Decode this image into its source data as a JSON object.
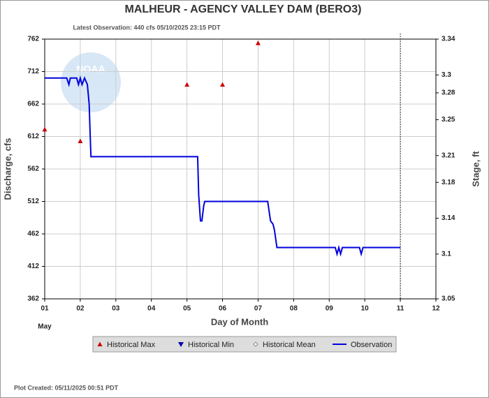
{
  "chart_data": {
    "type": "line",
    "title": "MALHEUR - AGENCY VALLEY DAM  (BERO3)",
    "subtitle": "Latest Observation: 440 cfs 05/10/2025 23:15 PDT",
    "x_label": "Day of Month",
    "month_label": "May",
    "y_label": "Discharge, cfs",
    "y2_label": "Stage, ft",
    "footer": "Plot Created: 05/11/2025 00:51 PDT",
    "xlim": [
      1,
      12
    ],
    "xticks": [
      {
        "value": 1,
        "label": "01"
      },
      {
        "value": 2,
        "label": "02"
      },
      {
        "value": 3,
        "label": "03"
      },
      {
        "value": 4,
        "label": "04"
      },
      {
        "value": 5,
        "label": "05"
      },
      {
        "value": 6,
        "label": "06"
      },
      {
        "value": 7,
        "label": "07"
      },
      {
        "value": 8,
        "label": "08"
      },
      {
        "value": 9,
        "label": "09"
      },
      10,
      11,
      12
    ],
    "ylim": [
      362,
      762
    ],
    "yticks": [
      362,
      412,
      462,
      512,
      562,
      612,
      662,
      712,
      762
    ],
    "y2lim": [
      3.05,
      3.34
    ],
    "y2ticks": [
      3.05,
      3.1,
      3.14,
      3.18,
      3.21,
      3.25,
      3.28,
      3.3,
      3.34
    ],
    "forecast_start": 11,
    "grid": true,
    "series": [
      {
        "name": "Historical Max",
        "color": "#cc0000",
        "marker": "triangle-up",
        "x": [
          1,
          2,
          5,
          6,
          7
        ],
        "values": [
          623,
          605,
          692,
          692,
          756
        ]
      },
      {
        "name": "Historical Min",
        "color": "#0000aa",
        "marker": "triangle-down",
        "x": [],
        "values": []
      },
      {
        "name": "Historical Mean",
        "color": "#888888",
        "marker": "diamond",
        "x": [],
        "values": []
      },
      {
        "name": "Observation",
        "color": "#0000dd",
        "marker": "line",
        "x": [
          1,
          1.62,
          1.68,
          1.72,
          1.9,
          1.95,
          2.0,
          2.05,
          2.12,
          2.2,
          2.25,
          2.28,
          2.3,
          5.3,
          5.33,
          5.38,
          5.42,
          5.47,
          5.5,
          7.27,
          7.35,
          7.42,
          7.46,
          7.53,
          9.17,
          9.22,
          9.27,
          9.32,
          9.37,
          9.85,
          9.9,
          9.95,
          11.0
        ],
        "values": [
          702,
          702,
          692,
          702,
          702,
          692,
          702,
          692,
          702,
          692,
          662,
          612,
          581,
          581,
          522,
          482,
          482,
          505,
          512,
          512,
          482,
          477,
          468,
          441,
          441,
          431,
          441,
          431,
          441,
          441,
          431,
          441,
          441
        ]
      }
    ]
  }
}
